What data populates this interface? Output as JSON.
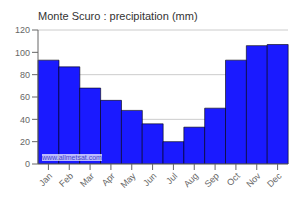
{
  "chart_data": {
    "type": "bar",
    "title": "Monte Scuro : precipitation (mm)",
    "categories": [
      "Jan",
      "Feb",
      "Mar",
      "Apr",
      "May",
      "Jun",
      "Jul",
      "Aug",
      "Sep",
      "Oct",
      "Nov",
      "Dec"
    ],
    "values": [
      93,
      87,
      68,
      57,
      48,
      36,
      20,
      33,
      50,
      93,
      106,
      107
    ],
    "color": "#1a1aff",
    "ylim": [
      0,
      120
    ],
    "yticks": [
      0,
      20,
      40,
      60,
      80,
      100,
      120
    ],
    "grid": true,
    "annotations": [
      "www.allmetsat.com"
    ]
  }
}
